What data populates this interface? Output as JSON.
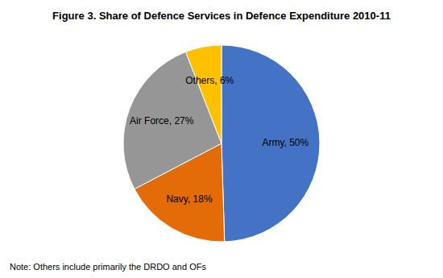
{
  "chart_data": {
    "type": "pie",
    "title": "Figure 3. Share of Defence Services in Defence Expenditure 2010-11",
    "categories": [
      "Army, 50%",
      "Navy, 18%",
      "Air Force, 27%",
      "Others, 6%"
    ],
    "values": [
      50,
      18,
      27,
      6
    ],
    "colors": [
      "#4472C4",
      "#E36C09",
      "#969696",
      "#FFC000"
    ],
    "annotations": [
      "Note: Others include primarily the DRDO and OFs"
    ]
  }
}
